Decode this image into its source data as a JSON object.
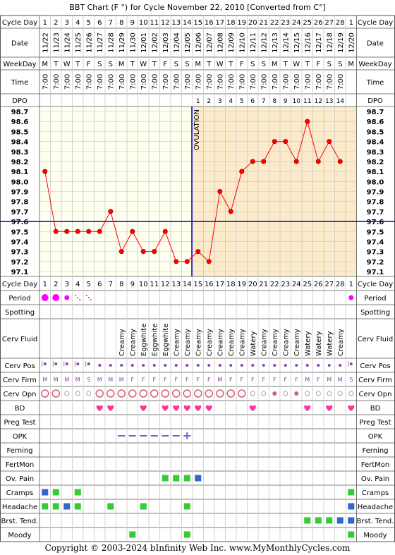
{
  "title": "BBT Chart (F °) for Cycle November 22, 2010  [Converted from C°]",
  "footer": "Copyright © 2003-2024 bInfinity Web Inc.    www.MyMonthlyCycles.com",
  "row_labels": {
    "cycle_day": "Cycle Day",
    "date": "Date",
    "weekday": "WeekDay",
    "time": "Time",
    "dpo": "DPO",
    "period": "Period",
    "spotting": "Spotting",
    "cerv_fluid": "Cerv Fluid",
    "cerv_pos": "Cerv Pos",
    "cerv_firm": "Cerv Firm",
    "cerv_opn": "Cerv Opn",
    "bd": "BD",
    "preg_test": "Preg Test",
    "opk": "OPK",
    "ferning": "Ferning",
    "fertmon": "FertMon",
    "ov_pain": "Ov. Pain",
    "cramps": "Cramps",
    "headache": "Headache",
    "brst_tend": "Brst. Tend.",
    "moody": "Moody"
  },
  "ovulation_label": "OVULATION",
  "colors": {
    "temp_line": "#ff0000",
    "temp_point": "#ff0000",
    "coverline": "#0000cc",
    "ovulation_line": "#0000cc",
    "pre_bg": "#fffff0",
    "post_bg": "#fbebcb",
    "period": "#ff00ff",
    "bd_heart": "#ff3399",
    "opk": "#6666cc",
    "symptom_green": "#33cc33",
    "symptom_blue": "#3366cc",
    "cervix_circle": "#d06070",
    "cervix_dot": "#8844aa"
  },
  "days": [
    "1",
    "2",
    "3",
    "4",
    "5",
    "6",
    "7",
    "8",
    "9",
    "10",
    "11",
    "12",
    "13",
    "14",
    "15",
    "16",
    "17",
    "18",
    "19",
    "20",
    "21",
    "22",
    "23",
    "24",
    "25",
    "26",
    "27",
    "28",
    "1"
  ],
  "dates": [
    "11/22",
    "11/23",
    "11/24",
    "11/25",
    "11/26",
    "11/27",
    "11/28",
    "11/29",
    "11/30",
    "12/01",
    "12/02",
    "12/03",
    "12/04",
    "12/05",
    "12/06",
    "12/07",
    "12/08",
    "12/09",
    "12/10",
    "12/11",
    "12/12",
    "12/13",
    "12/14",
    "12/15",
    "12/16",
    "12/17",
    "12/18",
    "12/19",
    "12/20"
  ],
  "weekdays": [
    "M",
    "T",
    "W",
    "T",
    "F",
    "S",
    "S",
    "M",
    "T",
    "W",
    "T",
    "F",
    "S",
    "S",
    "M",
    "T",
    "W",
    "T",
    "F",
    "S",
    "S",
    "M",
    "T",
    "W",
    "T",
    "F",
    "S",
    "S",
    "M"
  ],
  "times": [
    "7:00",
    "7:00",
    "7:00",
    "7:00",
    "7:00",
    "7:00",
    "7:00",
    "7:00",
    "7:00",
    "7:00",
    "7:00",
    "7:00",
    "7:00",
    "7:00",
    "7:00",
    "7:00",
    "7:00",
    "7:00",
    "7:00",
    "7:00",
    "7:00",
    "7:00",
    "7:00",
    "7:00",
    "7:00",
    "7:00",
    "7:00",
    "7:00",
    ""
  ],
  "dpo": [
    "",
    "",
    "",
    "",
    "",
    "",
    "",
    "",
    "",
    "",
    "",
    "",
    "",
    "",
    "1",
    "2",
    "3",
    "4",
    "5",
    "6",
    "7",
    "8",
    "9",
    "10",
    "11",
    "12",
    "13",
    "14",
    ""
  ],
  "cerv_fluid": [
    "",
    "",
    "",
    "",
    "",
    "",
    "",
    "Creamy",
    "Creamy",
    "Eggwhite",
    "Eggwhite",
    "Eggwhite",
    "Creamy",
    "Creamy",
    "Creamy",
    "Creamy",
    "Creamy",
    "Creamy",
    "Creamy",
    "Watery",
    "Creamy",
    "Creamy",
    "Creamy",
    "Creamy",
    "Watery",
    "Watery",
    "Watery",
    "Creamy",
    ""
  ],
  "cerv_pos": [
    "low",
    "low",
    "low",
    "low",
    "low",
    "mid",
    "mid",
    "mid",
    "mid",
    "mid",
    "mid",
    "mid",
    "mid",
    "mid",
    "mid",
    "mid",
    "mid",
    "mid",
    "mid",
    "mid",
    "mid",
    "mid",
    "mid",
    "mid",
    "mid",
    "mid",
    "mid",
    "mid",
    "low"
  ],
  "cerv_firm": [
    "M",
    "M",
    "M",
    "M",
    "S",
    "M",
    "M",
    "M",
    "F",
    "F",
    "F",
    "F",
    "F",
    "F",
    "F",
    "F",
    "M",
    "F",
    "F",
    "F",
    "F",
    "F",
    "F",
    "F",
    "M",
    "F",
    "M",
    "M",
    "S"
  ],
  "cerv_opn": [
    "big",
    "big",
    "small",
    "small",
    "small",
    "big",
    "big",
    "big",
    "big",
    "big",
    "big",
    "big",
    "big",
    "big",
    "big",
    "big",
    "big",
    "big",
    "big",
    "small",
    "small",
    "dot",
    "small",
    "dot",
    "small",
    "small",
    "small",
    "small",
    "small"
  ],
  "period": [
    3,
    3,
    2,
    1,
    1,
    0,
    0,
    0,
    0,
    0,
    0,
    0,
    0,
    0,
    0,
    0,
    0,
    0,
    0,
    0,
    0,
    0,
    0,
    0,
    0,
    0,
    0,
    0,
    2
  ],
  "bd": [
    0,
    0,
    0,
    0,
    0,
    1,
    1,
    0,
    0,
    1,
    0,
    1,
    1,
    1,
    1,
    1,
    0,
    0,
    0,
    1,
    0,
    0,
    0,
    0,
    1,
    0,
    1,
    0,
    1
  ],
  "opk": [
    "",
    "",
    "",
    "",
    "",
    "",
    "",
    "-",
    "-",
    "-",
    "-",
    "-",
    "-",
    "+",
    "",
    "",
    "",
    "",
    "",
    "",
    "",
    "",
    "",
    "",
    "",
    "",
    "",
    "",
    ""
  ],
  "ov_pain": [
    "",
    "",
    "",
    "",
    "",
    "",
    "",
    "",
    "",
    "",
    "",
    "g",
    "g",
    "g",
    "b",
    "",
    "",
    "",
    "",
    "",
    "",
    "",
    "",
    "",
    "",
    "",
    "",
    "",
    ""
  ],
  "cramps": [
    "b",
    "g",
    "",
    "g",
    "",
    "",
    "",
    "",
    "",
    "",
    "",
    "",
    "",
    "",
    "",
    "",
    "",
    "",
    "",
    "",
    "",
    "",
    "",
    "",
    "",
    "",
    "",
    "",
    "g"
  ],
  "headache": [
    "g",
    "g",
    "b",
    "g",
    "",
    "",
    "g",
    "",
    "",
    "g",
    "",
    "",
    "",
    "g",
    "",
    "",
    "",
    "",
    "",
    "",
    "",
    "",
    "",
    "",
    "",
    "",
    "",
    "",
    "b"
  ],
  "brst_tend": [
    "",
    "",
    "",
    "",
    "",
    "",
    "",
    "",
    "",
    "",
    "",
    "",
    "",
    "",
    "",
    "",
    "",
    "",
    "",
    "",
    "",
    "",
    "",
    "",
    "g",
    "g",
    "g",
    "b",
    "b"
  ],
  "moody": [
    "",
    "",
    "",
    "",
    "",
    "",
    "",
    "",
    "g",
    "",
    "",
    "",
    "",
    "g",
    "",
    "",
    "",
    "",
    "",
    "",
    "",
    "",
    "",
    "",
    "",
    "",
    "",
    "",
    "g"
  ],
  "chart_data": {
    "type": "line",
    "title": "BBT Chart (F °) for Cycle November 22, 2010  [Converted from C°]",
    "xlabel": "Cycle Day",
    "ylabel": "",
    "ylim": [
      97.1,
      98.7
    ],
    "yticks": [
      "98.7",
      "98.6",
      "98.5",
      "98.4",
      "98.3",
      "98.2",
      "98.1",
      "98.0",
      "97.9",
      "97.8",
      "97.7",
      "97.6",
      "97.5",
      "97.4",
      "97.3",
      "97.2",
      "97.1"
    ],
    "categories": [
      "1",
      "2",
      "3",
      "4",
      "5",
      "6",
      "7",
      "8",
      "9",
      "10",
      "11",
      "12",
      "13",
      "14",
      "15",
      "16",
      "17",
      "18",
      "19",
      "20",
      "21",
      "22",
      "23",
      "24",
      "25",
      "26",
      "27",
      "28",
      "1"
    ],
    "series": [
      {
        "values": [
          98.1,
          97.5,
          97.5,
          97.5,
          97.5,
          97.5,
          97.7,
          97.3,
          97.5,
          97.3,
          97.3,
          97.5,
          97.2,
          97.2,
          97.3,
          97.2,
          97.9,
          97.7,
          98.1,
          98.2,
          98.2,
          98.4,
          98.4,
          98.2,
          98.6,
          98.2,
          98.4,
          98.2,
          null
        ]
      }
    ],
    "coverline": 97.6,
    "ovulation_day": 14,
    "grid": true
  }
}
